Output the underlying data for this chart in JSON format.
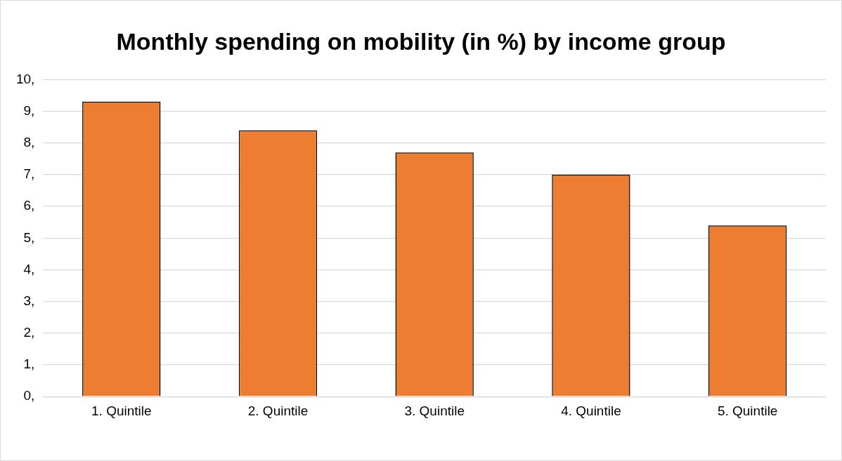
{
  "chart_data": {
    "type": "bar",
    "title": "Monthly spending on mobility (in %) by income group",
    "categories": [
      "1. Quintile",
      "2. Quintile",
      "3. Quintile",
      "4. Quintile",
      "5. Quintile"
    ],
    "values": [
      9.3,
      8.4,
      7.7,
      7.0,
      5.4
    ],
    "color": "#ed7d31",
    "ylim": [
      0,
      10
    ],
    "yticks": [
      {
        "value": 0,
        "label": "0,"
      },
      {
        "value": 1,
        "label": "1,"
      },
      {
        "value": 2,
        "label": "2,"
      },
      {
        "value": 3,
        "label": "3,"
      },
      {
        "value": 4,
        "label": "4,"
      },
      {
        "value": 5,
        "label": "5,"
      },
      {
        "value": 6,
        "label": "6,"
      },
      {
        "value": 7,
        "label": "7,"
      },
      {
        "value": 8,
        "label": "8,"
      },
      {
        "value": 9,
        "label": "9,"
      },
      {
        "value": 10,
        "label": "10,"
      }
    ],
    "grid": "y",
    "legend": false
  }
}
